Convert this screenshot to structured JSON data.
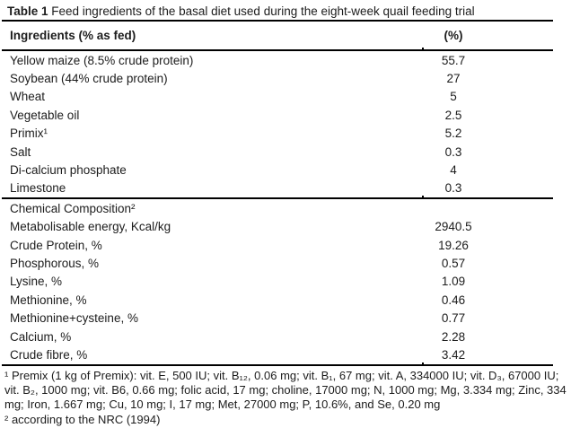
{
  "caption": {
    "bold": "Table 1",
    "rest": " Feed ingredients of the basal diet used during the eight-week quail feeding trial"
  },
  "table": {
    "header": {
      "ingredients": "Ingredients (% as fed)",
      "value": "(%)"
    },
    "ingredients": [
      {
        "name": "Yellow maize (8.5% crude protein)",
        "value": "55.7"
      },
      {
        "name": "Soybean (44% crude protein)",
        "value": "27"
      },
      {
        "name": "Wheat",
        "value": "5"
      },
      {
        "name": "Vegetable oil",
        "value": "2.5"
      },
      {
        "name": "Primix¹",
        "value": "5.2"
      },
      {
        "name": "Salt",
        "value": "0.3"
      },
      {
        "name": "Di-calcium phosphate",
        "value": "4"
      },
      {
        "name": "Limestone",
        "value": "0.3"
      }
    ],
    "section_heading": "Chemical Composition²",
    "composition": [
      {
        "name": "Metabolisable energy, Kcal/kg",
        "value": "2940.5"
      },
      {
        "name": "Crude Protein, %",
        "value": "19.26"
      },
      {
        "name": "Phosphorous, %",
        "value": "0.57"
      },
      {
        "name": "Lysine, %",
        "value": "1.09"
      },
      {
        "name": "Methionine, %",
        "value": "0.46"
      },
      {
        "name": "Methionine+cysteine, %",
        "value": "0.77"
      },
      {
        "name": "Calcium, %",
        "value": "2.28"
      },
      {
        "name": "Crude fibre, %",
        "value": "3.42"
      }
    ]
  },
  "footnotes": {
    "premix": "¹ Premix (1 kg of Premix): vit. E, 500 IU; vit. B₁₂, 0.06 mg; vit. B₁, 67 mg; vit. A, 334000 IU; vit. D₃, 67000 IU; vit. B₂, 1000 mg; vit. B6, 0.66 mg; folic acid, 17 mg; choline, 17000 mg; N, 1000 mg; Mg, 3.334 mg; Zinc, 334 mg; Iron, 1.667 mg; Cu, 10 mg; I, 17 mg; Met, 27000 mg; P, 10.6%, and Se, 0.20 mg",
    "nrc": "² according to the NRC (1994)"
  },
  "colors": {
    "background": "#ffffff",
    "text": "#1c1c1c",
    "rule": "#000000"
  }
}
